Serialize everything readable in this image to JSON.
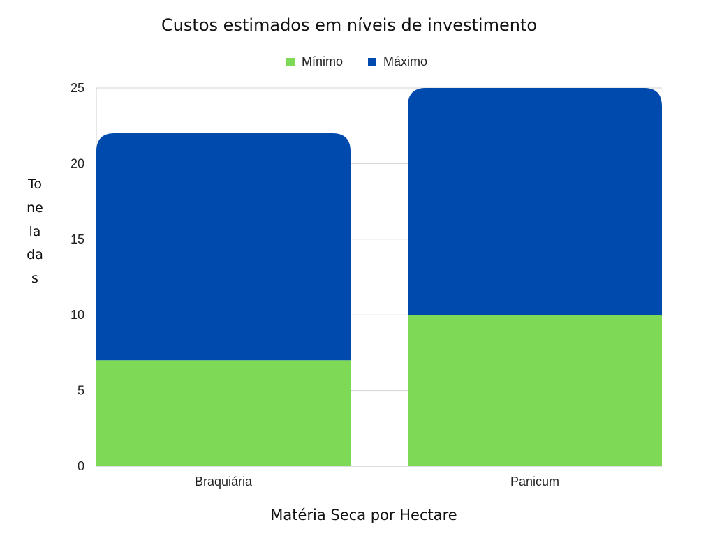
{
  "chart_data": {
    "type": "bar",
    "stacked": true,
    "title": "Custos estimados em níveis de investimento",
    "xlabel": "Matéria Seca por Hectare",
    "ylabel": "Toneladas",
    "categories": [
      "Braquiária",
      "Panicum"
    ],
    "series": [
      {
        "name": "Mínimo",
        "color": "#7ed957",
        "values": [
          7,
          10
        ]
      },
      {
        "name": "Máximo",
        "color": "#004aad",
        "values": [
          15,
          15
        ]
      }
    ],
    "ylim": [
      0,
      25
    ],
    "yticks": [
      0,
      5,
      10,
      15,
      20,
      25
    ],
    "grid": true,
    "legend_position": "top"
  }
}
